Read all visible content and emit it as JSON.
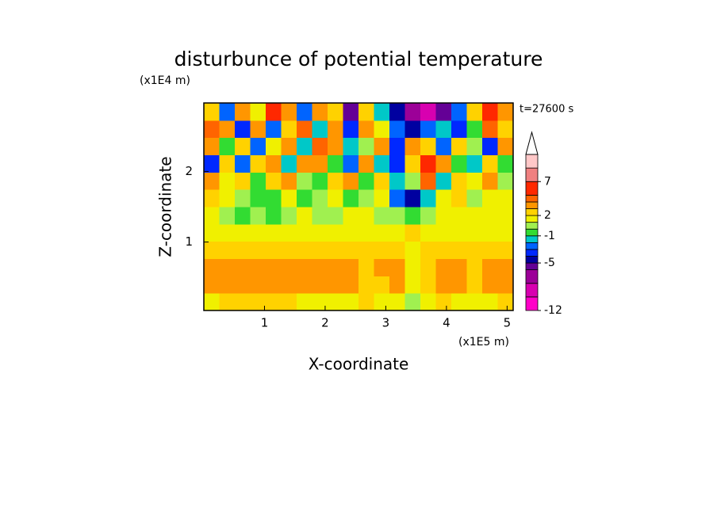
{
  "chart_data": {
    "type": "contour",
    "title": "disturbunce of potential temperature",
    "x_label": "X-coordinate",
    "y_label": "Z-coordinate",
    "x_unit": "(x1E5 m)",
    "y_unit": "(x1E4 m)",
    "time_label": "t=27600 s",
    "xlim": [
      0,
      5.1
    ],
    "ylim": [
      0.03,
      2.97
    ],
    "xticks": [
      1,
      2,
      3,
      4,
      5
    ],
    "yticks": [
      1,
      2
    ],
    "xbins": [
      0,
      0.255,
      0.51,
      0.765,
      1.02,
      1.275,
      1.53,
      1.785,
      2.04,
      2.295,
      2.55,
      2.805,
      3.06,
      3.315,
      3.57,
      3.825,
      4.08,
      4.335,
      4.59,
      4.845,
      5.1
    ],
    "ybins": [
      0.03,
      0.275,
      0.52,
      0.765,
      1.01,
      1.255,
      1.5,
      1.745,
      1.99,
      2.235,
      2.48,
      2.725,
      2.97
    ],
    "z": [
      [
        1.5,
        2,
        2.5,
        2,
        2,
        2,
        1.5,
        1.5,
        1.5,
        1.5,
        2,
        1.5,
        1.5,
        0.5,
        1,
        2,
        1.5,
        1,
        1.5,
        2
      ],
      [
        3,
        3.5,
        3,
        3,
        3,
        3.5,
        3,
        3,
        3,
        3,
        2.5,
        2.5,
        3,
        1.5,
        2,
        3.5,
        3,
        2.5,
        3,
        3.5
      ],
      [
        3,
        3.5,
        3.5,
        3.5,
        3,
        3,
        3,
        3,
        3,
        3,
        2.5,
        3,
        3,
        1.5,
        2,
        3,
        3,
        2.5,
        3,
        3
      ],
      [
        2.5,
        2.5,
        2.5,
        2.5,
        2.5,
        2.5,
        2.5,
        2,
        2,
        2,
        2,
        2,
        2.5,
        1.5,
        2,
        2.5,
        2.5,
        2,
        2,
        2
      ],
      [
        1.5,
        1.5,
        1.5,
        1,
        1,
        1,
        1.5,
        1.5,
        1,
        1.5,
        1.5,
        1.5,
        1.5,
        2,
        1.5,
        1.5,
        1.5,
        1.5,
        1.5,
        1.5
      ],
      [
        1,
        0,
        -0.5,
        0.5,
        -0.5,
        0,
        1,
        0,
        0.5,
        1,
        1,
        0.5,
        0.5,
        -1,
        0,
        1,
        1,
        1.5,
        1.5,
        1
      ],
      [
        2,
        1.5,
        0,
        -1,
        -0.5,
        1,
        -1,
        0,
        1.5,
        -0.5,
        0,
        1,
        -3,
        -5,
        -2,
        1,
        2,
        0.5,
        1,
        1.5
      ],
      [
        3,
        1,
        2,
        -1,
        2,
        3,
        0,
        -1,
        2,
        3,
        -1,
        2,
        -2,
        0,
        4,
        -2,
        2,
        1,
        3,
        0
      ],
      [
        -4,
        2,
        -3,
        2,
        3,
        -2,
        3,
        3,
        -1,
        -3,
        3,
        -2,
        -4,
        2,
        6,
        3,
        -1,
        -2,
        2,
        -1
      ],
      [
        3,
        -1,
        2,
        -3,
        1,
        3,
        -2,
        4,
        3,
        -2,
        0,
        3,
        -4,
        3,
        2,
        -3,
        2,
        0,
        -4,
        3
      ],
      [
        4,
        3,
        -4,
        3,
        -3,
        2,
        4,
        -2,
        3,
        -4,
        3,
        1,
        -3,
        -5,
        -3,
        -2,
        -4,
        -1,
        4,
        2
      ],
      [
        2,
        -3,
        3,
        1,
        6,
        3,
        -3,
        3,
        2,
        -6,
        2,
        -2,
        -5,
        -8,
        -9,
        -6,
        -3,
        2,
        5,
        3
      ]
    ],
    "clim": [
      -12,
      11
    ],
    "levels": [
      -12,
      -10,
      -8,
      -6,
      -5,
      -4,
      -3,
      -2,
      -1,
      0,
      1,
      2,
      3,
      4,
      5,
      7,
      9,
      11
    ],
    "colors": [
      "#ff00c8",
      "#d800b0",
      "#9c0098",
      "#640096",
      "#0000a0",
      "#0028ff",
      "#0064ff",
      "#00c8c8",
      "#32dc32",
      "#a0f050",
      "#f0f000",
      "#ffd200",
      "#ff9600",
      "#ff6400",
      "#ff2800",
      "#f08080",
      "#ffc8c8"
    ],
    "over_color": "#ffffff",
    "cticks": [
      -12,
      -5,
      -1,
      2,
      7
    ]
  }
}
